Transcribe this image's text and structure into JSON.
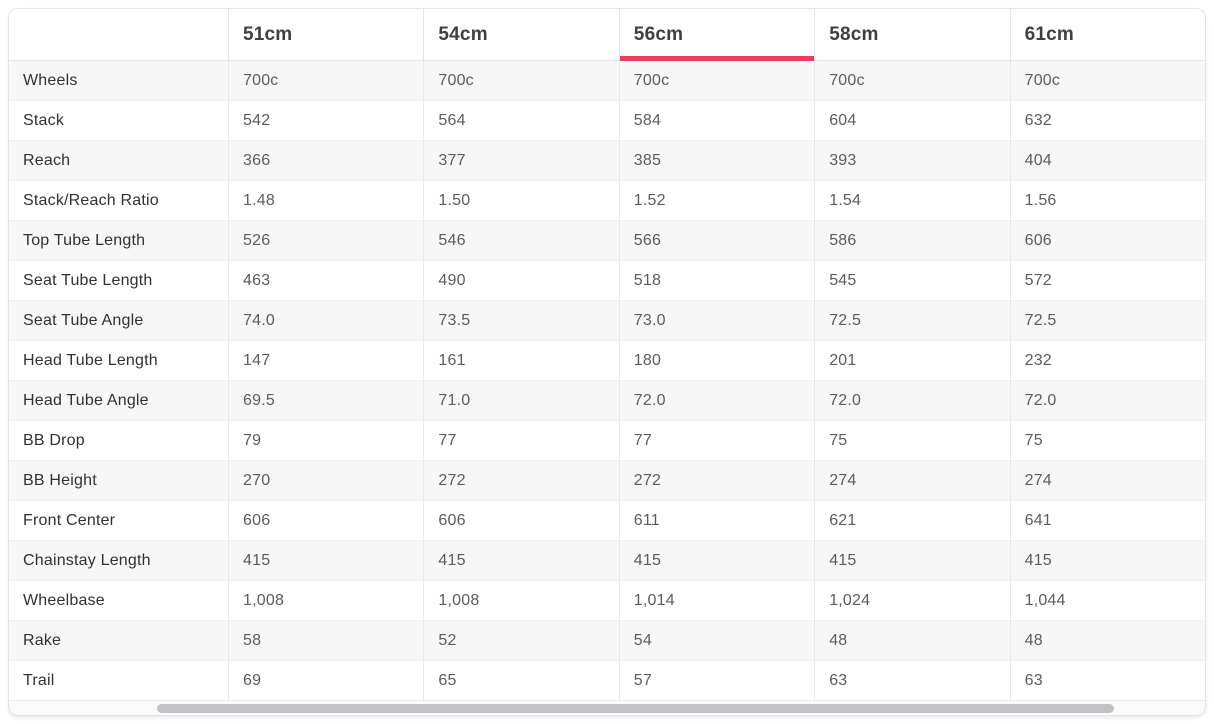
{
  "accent_color": "#ec3e5a",
  "table": {
    "corner_label": "",
    "sizes": [
      "51cm",
      "54cm",
      "56cm",
      "58cm",
      "61cm"
    ],
    "selected_index": 2,
    "selected_size": "56cm",
    "rows": [
      {
        "label": "Wheels",
        "values": [
          "700c",
          "700c",
          "700c",
          "700c",
          "700c"
        ]
      },
      {
        "label": "Stack",
        "values": [
          "542",
          "564",
          "584",
          "604",
          "632"
        ]
      },
      {
        "label": "Reach",
        "values": [
          "366",
          "377",
          "385",
          "393",
          "404"
        ]
      },
      {
        "label": "Stack/Reach Ratio",
        "values": [
          "1.48",
          "1.50",
          "1.52",
          "1.54",
          "1.56"
        ]
      },
      {
        "label": "Top Tube Length",
        "values": [
          "526",
          "546",
          "566",
          "586",
          "606"
        ]
      },
      {
        "label": "Seat Tube Length",
        "values": [
          "463",
          "490",
          "518",
          "545",
          "572"
        ]
      },
      {
        "label": "Seat Tube Angle",
        "values": [
          "74.0",
          "73.5",
          "73.0",
          "72.5",
          "72.5"
        ]
      },
      {
        "label": "Head Tube Length",
        "values": [
          "147",
          "161",
          "180",
          "201",
          "232"
        ]
      },
      {
        "label": "Head Tube Angle",
        "values": [
          "69.5",
          "71.0",
          "72.0",
          "72.0",
          "72.0"
        ]
      },
      {
        "label": "BB Drop",
        "values": [
          "79",
          "77",
          "77",
          "75",
          "75"
        ]
      },
      {
        "label": "BB Height",
        "values": [
          "270",
          "272",
          "272",
          "274",
          "274"
        ]
      },
      {
        "label": "Front Center",
        "values": [
          "606",
          "606",
          "611",
          "621",
          "641"
        ]
      },
      {
        "label": "Chainstay Length",
        "values": [
          "415",
          "415",
          "415",
          "415",
          "415"
        ]
      },
      {
        "label": "Wheelbase",
        "values": [
          "1,008",
          "1,008",
          "1,014",
          "1,024",
          "1,044"
        ]
      },
      {
        "label": "Rake",
        "values": [
          "58",
          "52",
          "54",
          "48",
          "48"
        ]
      },
      {
        "label": "Trail",
        "values": [
          "69",
          "65",
          "57",
          "63",
          "63"
        ]
      }
    ]
  }
}
